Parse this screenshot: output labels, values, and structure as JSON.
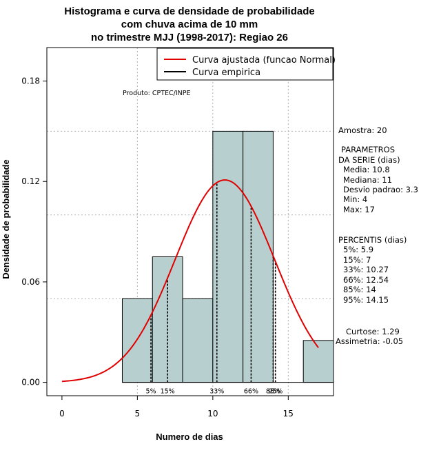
{
  "chart_data": {
    "type": "bar",
    "title_lines": [
      "Histograma e curva de densidade de probabilidade",
      "com chuva acima de 10 mm",
      "no trimestre MJJ (1998-2017): Regiao 26"
    ],
    "xlabel": "Numero de dias",
    "ylabel": "Densidade de probabilidade",
    "xlim": [
      -1,
      18
    ],
    "ylim": [
      -0.008,
      0.2
    ],
    "xticks": [
      0,
      5,
      10,
      15
    ],
    "yticks": [
      0.0,
      0.06,
      0.12,
      0.18
    ],
    "ytick_labels": [
      "0.00",
      "0.06",
      "0.12",
      "0.18"
    ],
    "grid_y": [
      0.05,
      0.1,
      0.15
    ],
    "grid_x": [
      5,
      10,
      15
    ],
    "bins": [
      {
        "from": 4,
        "to": 6,
        "density": 0.05
      },
      {
        "from": 6,
        "to": 8,
        "density": 0.075
      },
      {
        "from": 8,
        "to": 10,
        "density": 0.05
      },
      {
        "from": 10,
        "to": 12,
        "density": 0.15
      },
      {
        "from": 12,
        "to": 14,
        "density": 0.15
      },
      {
        "from": 14,
        "to": 16,
        "density": 0.0
      },
      {
        "from": 16,
        "to": 18,
        "density": 0.025
      }
    ],
    "bar_color": "#b8cfcf",
    "normal_fit": {
      "mean": 10.8,
      "sd": 3.3,
      "x_from": 0,
      "x_to": 17,
      "color": "#e00000"
    },
    "percentile_lines": [
      {
        "label": "5%",
        "x": 5.9
      },
      {
        "label": "15%",
        "x": 7
      },
      {
        "label": "33%",
        "x": 10.27
      },
      {
        "label": "66%",
        "x": 12.54
      },
      {
        "label": "85%",
        "x": 14
      },
      {
        "label": "95%",
        "x": 14.15
      }
    ],
    "legend": {
      "position": "top-right",
      "entries": [
        {
          "label": "Curva ajustada (funcao Normal)",
          "color": "#e00000"
        },
        {
          "label": "Curva empirica",
          "color": "#000000"
        }
      ]
    },
    "annotation": "Produto: CPTEC/INPE",
    "side_text": {
      "amostra": "Amostra: 20",
      "param_title_1": "PARAMETROS",
      "param_title_2": "DA SERIE (dias)",
      "params": [
        "Media: 10.8",
        "Mediana: 11",
        "Desvio padrao: 3.3",
        "Min: 4",
        "Max: 17"
      ],
      "perc_title": "PERCENTIS (dias)",
      "percentis": [
        "5%: 5.9",
        "15%: 7",
        "33%: 10.27",
        "66%: 12.54",
        "85%: 14",
        "95%: 14.15"
      ],
      "curtose": "Curtose: 1.29",
      "assimetria": "Assimetria: -0.05"
    }
  }
}
